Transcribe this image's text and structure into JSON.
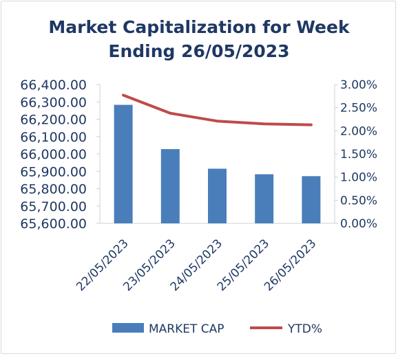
{
  "chart_data": {
    "type": "bar",
    "title_lines": [
      "Market Capitalization for Week",
      "Ending 26/05/2023"
    ],
    "categories": [
      "22/05/2023",
      "23/05/2023",
      "24/05/2023",
      "25/05/2023",
      "26/05/2023"
    ],
    "series": [
      {
        "name": "MARKET CAP",
        "type": "bar",
        "axis": "left",
        "color": "#4a7ebb",
        "values": [
          66283,
          66028,
          65915,
          65883,
          65872
        ]
      },
      {
        "name": "YTD%",
        "type": "line",
        "axis": "right",
        "color": "#be4b48",
        "values": [
          2.77,
          2.38,
          2.21,
          2.15,
          2.13
        ]
      }
    ],
    "y_left": {
      "ylim": [
        65600,
        66400
      ],
      "ticks": [
        "65,600.00",
        "65,700.00",
        "65,800.00",
        "65,900.00",
        "66,000.00",
        "66,100.00",
        "66,200.00",
        "66,300.00",
        "66,400.00"
      ]
    },
    "y_right": {
      "ylim": [
        0,
        3
      ],
      "ticks": [
        "0.00%",
        "0.50%",
        "1.00%",
        "1.50%",
        "2.00%",
        "2.50%",
        "3.00%"
      ]
    },
    "grid": false,
    "legend_position": "bottom"
  }
}
